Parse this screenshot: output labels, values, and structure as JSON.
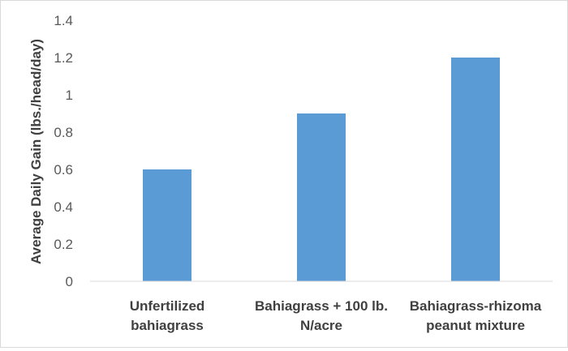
{
  "chart_data": {
    "type": "bar",
    "title": "",
    "xlabel": "",
    "ylabel": "Average Daily Gain (lbs./head/day)",
    "categories": [
      [
        "Unfertilized",
        "bahiagrass"
      ],
      [
        "Bahiagrass + 100 lb.",
        "N/acre"
      ],
      [
        "Bahiagrass-rhizoma",
        "peanut mixture"
      ]
    ],
    "values": [
      0.6,
      0.9,
      1.2
    ],
    "ylim": [
      0,
      1.4
    ],
    "yticks": [
      "0",
      "0.2",
      "0.4",
      "0.6",
      "0.8",
      "1",
      "1.2",
      "1.4"
    ],
    "grid": false,
    "legend": "none",
    "bar_color": "#5b9bd5",
    "axis_color": "#d9d9d9"
  }
}
